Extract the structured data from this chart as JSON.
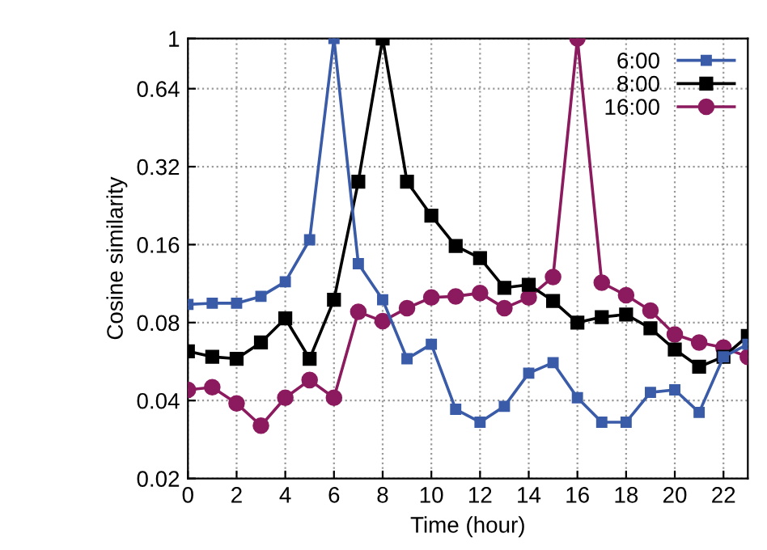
{
  "chart_data": {
    "type": "line",
    "xlabel": "Time (hour)",
    "ylabel": "Cosine similarity",
    "log": "y",
    "x": [
      0,
      1,
      2,
      3,
      4,
      5,
      6,
      7,
      8,
      9,
      10,
      11,
      12,
      13,
      14,
      15,
      16,
      17,
      18,
      19,
      20,
      21,
      22,
      23
    ],
    "series": [
      {
        "name": "6:00",
        "color": "#3a5ba8",
        "marker": "square",
        "values": [
          0.094,
          0.095,
          0.095,
          0.101,
          0.115,
          0.167,
          1.0,
          0.135,
          0.098,
          0.058,
          0.066,
          0.037,
          0.033,
          0.038,
          0.051,
          0.056,
          0.041,
          0.033,
          0.033,
          0.043,
          0.044,
          0.036,
          0.059,
          0.066
        ]
      },
      {
        "name": "8:00",
        "color": "#000000",
        "marker": "square",
        "values": [
          0.062,
          0.059,
          0.058,
          0.067,
          0.083,
          0.058,
          0.098,
          0.28,
          1.0,
          0.28,
          0.207,
          0.158,
          0.142,
          0.109,
          0.112,
          0.097,
          0.08,
          0.084,
          0.086,
          0.076,
          0.063,
          0.054,
          0.059,
          0.071
        ]
      },
      {
        "name": "16:00",
        "color": "#8b1a5e",
        "marker": "circle",
        "values": [
          0.044,
          0.045,
          0.039,
          0.032,
          0.041,
          0.048,
          0.041,
          0.088,
          0.081,
          0.091,
          0.1,
          0.101,
          0.104,
          0.091,
          0.1,
          0.12,
          1.0,
          0.114,
          0.102,
          0.089,
          0.072,
          0.067,
          0.064,
          0.059
        ]
      }
    ],
    "xlim": [
      0,
      23
    ],
    "xticks": [
      0,
      2,
      4,
      6,
      8,
      10,
      12,
      14,
      16,
      18,
      20,
      22
    ],
    "ylim": [
      0.02,
      1
    ],
    "yticks": [
      0.02,
      0.04,
      0.08,
      0.16,
      0.32,
      0.64,
      1
    ],
    "grid": true,
    "legend": "top right",
    "line_style": "solid"
  }
}
